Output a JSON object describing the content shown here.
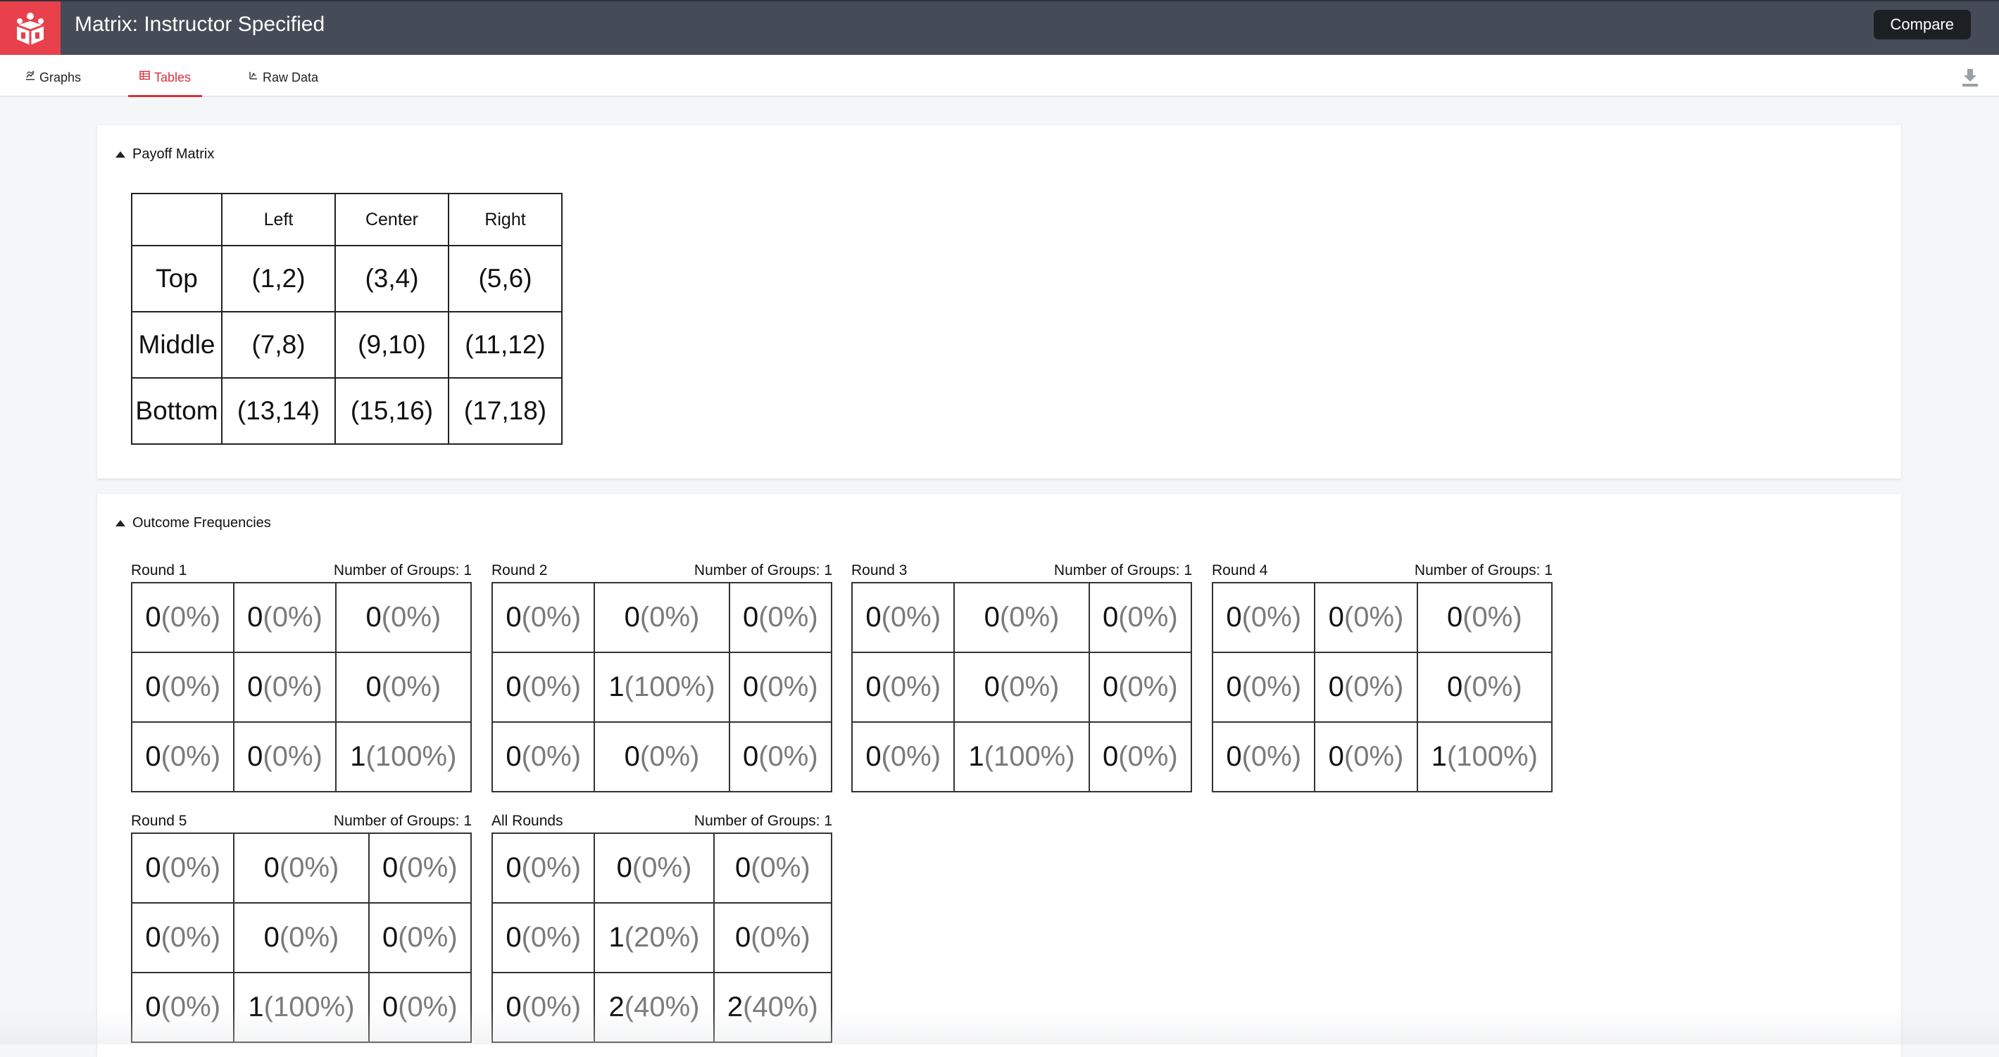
{
  "header": {
    "title": "Matrix: Instructor Specified",
    "compare_label": "Compare",
    "logo_icon": "cube-people-logo",
    "accent": "#e8414b",
    "bar_color": "#454c57"
  },
  "tabs": [
    {
      "label": "Graphs",
      "icon": "chart-icon",
      "active": false
    },
    {
      "label": "Tables",
      "icon": "table-icon",
      "active": true
    },
    {
      "label": "Raw Data",
      "icon": "raw-data-icon",
      "active": false
    }
  ],
  "download_icon": "download-icon",
  "payoff": {
    "section_title": "Payoff Matrix",
    "columns": [
      "Left",
      "Center",
      "Right"
    ],
    "rows": [
      {
        "label": "Top",
        "cells": [
          "(1,2)",
          "(3,4)",
          "(5,6)"
        ]
      },
      {
        "label": "Middle",
        "cells": [
          "(7,8)",
          "(9,10)",
          "(11,12)"
        ]
      },
      {
        "label": "Bottom",
        "cells": [
          "(13,14)",
          "(15,16)",
          "(17,18)"
        ]
      }
    ]
  },
  "outcomes": {
    "section_title": "Outcome Frequencies",
    "groups_prefix": "Number of Groups: ",
    "tables": [
      {
        "label": "Round 1",
        "groups": "1",
        "cells": [
          [
            {
              "n": "0",
              "p": "(0%)"
            },
            {
              "n": "0",
              "p": "(0%)"
            },
            {
              "n": "0",
              "p": "(0%)"
            }
          ],
          [
            {
              "n": "0",
              "p": "(0%)"
            },
            {
              "n": "0",
              "p": "(0%)"
            },
            {
              "n": "0",
              "p": "(0%)"
            }
          ],
          [
            {
              "n": "0",
              "p": "(0%)"
            },
            {
              "n": "0",
              "p": "(0%)"
            },
            {
              "n": "1",
              "p": "(100%)"
            }
          ]
        ]
      },
      {
        "label": "Round 2",
        "groups": "1",
        "cells": [
          [
            {
              "n": "0",
              "p": "(0%)"
            },
            {
              "n": "0",
              "p": "(0%)"
            },
            {
              "n": "0",
              "p": "(0%)"
            }
          ],
          [
            {
              "n": "0",
              "p": "(0%)"
            },
            {
              "n": "1",
              "p": "(100%)"
            },
            {
              "n": "0",
              "p": "(0%)"
            }
          ],
          [
            {
              "n": "0",
              "p": "(0%)"
            },
            {
              "n": "0",
              "p": "(0%)"
            },
            {
              "n": "0",
              "p": "(0%)"
            }
          ]
        ]
      },
      {
        "label": "Round 3",
        "groups": "1",
        "cells": [
          [
            {
              "n": "0",
              "p": "(0%)"
            },
            {
              "n": "0",
              "p": "(0%)"
            },
            {
              "n": "0",
              "p": "(0%)"
            }
          ],
          [
            {
              "n": "0",
              "p": "(0%)"
            },
            {
              "n": "0",
              "p": "(0%)"
            },
            {
              "n": "0",
              "p": "(0%)"
            }
          ],
          [
            {
              "n": "0",
              "p": "(0%)"
            },
            {
              "n": "1",
              "p": "(100%)"
            },
            {
              "n": "0",
              "p": "(0%)"
            }
          ]
        ]
      },
      {
        "label": "Round 4",
        "groups": "1",
        "cells": [
          [
            {
              "n": "0",
              "p": "(0%)"
            },
            {
              "n": "0",
              "p": "(0%)"
            },
            {
              "n": "0",
              "p": "(0%)"
            }
          ],
          [
            {
              "n": "0",
              "p": "(0%)"
            },
            {
              "n": "0",
              "p": "(0%)"
            },
            {
              "n": "0",
              "p": "(0%)"
            }
          ],
          [
            {
              "n": "0",
              "p": "(0%)"
            },
            {
              "n": "0",
              "p": "(0%)"
            },
            {
              "n": "1",
              "p": "(100%)"
            }
          ]
        ]
      },
      {
        "label": "Round 5",
        "groups": "1",
        "cells": [
          [
            {
              "n": "0",
              "p": "(0%)"
            },
            {
              "n": "0",
              "p": "(0%)"
            },
            {
              "n": "0",
              "p": "(0%)"
            }
          ],
          [
            {
              "n": "0",
              "p": "(0%)"
            },
            {
              "n": "0",
              "p": "(0%)"
            },
            {
              "n": "0",
              "p": "(0%)"
            }
          ],
          [
            {
              "n": "0",
              "p": "(0%)"
            },
            {
              "n": "1",
              "p": "(100%)"
            },
            {
              "n": "0",
              "p": "(0%)"
            }
          ]
        ]
      },
      {
        "label": "All Rounds",
        "groups": "1",
        "cells": [
          [
            {
              "n": "0",
              "p": "(0%)"
            },
            {
              "n": "0",
              "p": "(0%)"
            },
            {
              "n": "0",
              "p": "(0%)"
            }
          ],
          [
            {
              "n": "0",
              "p": "(0%)"
            },
            {
              "n": "1",
              "p": "(20%)"
            },
            {
              "n": "0",
              "p": "(0%)"
            }
          ],
          [
            {
              "n": "0",
              "p": "(0%)"
            },
            {
              "n": "2",
              "p": "(40%)"
            },
            {
              "n": "2",
              "p": "(40%)"
            }
          ]
        ]
      }
    ]
  }
}
